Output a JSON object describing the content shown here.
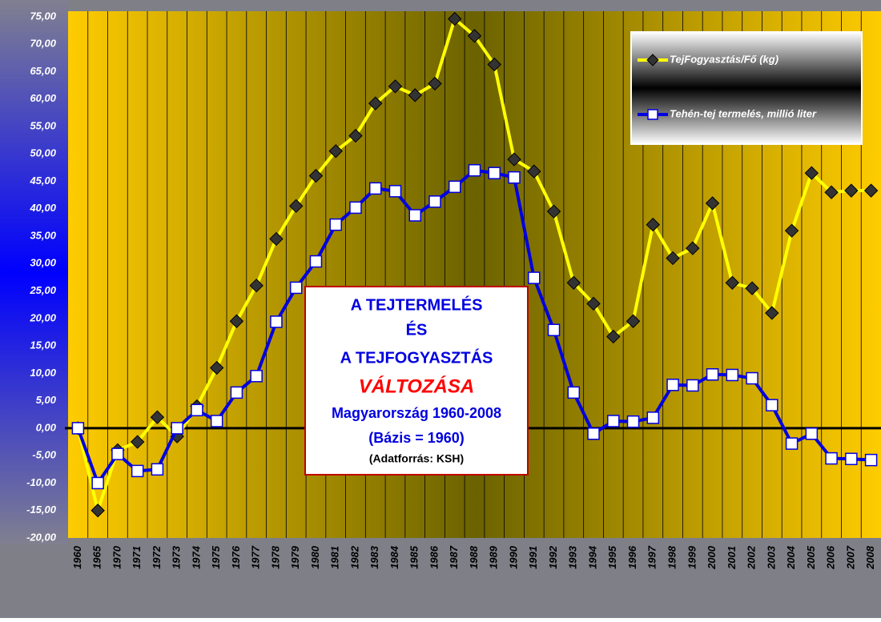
{
  "chart_data": {
    "type": "line",
    "categories": [
      "1960",
      "1965",
      "1970",
      "1971",
      "1972",
      "1973",
      "1974",
      "1975",
      "1976",
      "1977",
      "1978",
      "1979",
      "1980",
      "1981",
      "1982",
      "1983",
      "1984",
      "1985",
      "1986",
      "1987",
      "1988",
      "1989",
      "1990",
      "1991",
      "1992",
      "1993",
      "1994",
      "1995",
      "1996",
      "1997",
      "1998",
      "1999",
      "2000",
      "2001",
      "2002",
      "2003",
      "2004",
      "2005",
      "2006",
      "2007",
      "2008"
    ],
    "series": [
      {
        "name": "TejFogyasztás/Fő (kg)",
        "color": "#ffff00",
        "marker": "diamond",
        "values": [
          0,
          -15,
          -4,
          -2.5,
          2,
          -1.5,
          4,
          11,
          19.5,
          26,
          34.5,
          40.5,
          46,
          50.5,
          53.3,
          59.2,
          62.3,
          60.7,
          62.8,
          74.6,
          71.5,
          66.3,
          49,
          46.8,
          39.5,
          26.5,
          22.7,
          16.7,
          19.5,
          37.1,
          31,
          32.8,
          41,
          26.5,
          25.5,
          21,
          36,
          46.5,
          43,
          43.3,
          43.3
        ]
      },
      {
        "name": "Tehén-tej termelés, millió liter",
        "color": "#0000e0",
        "marker": "square",
        "values": [
          0,
          -10,
          -4.7,
          -7.8,
          -7.5,
          0,
          3.3,
          1.3,
          6.5,
          9.5,
          19.4,
          25.6,
          30.4,
          37.1,
          40.2,
          43.7,
          43.2,
          38.8,
          41.3,
          44,
          47,
          46.5,
          45.7,
          27.4,
          17.9,
          6.5,
          -1,
          1.3,
          1.2,
          1.9,
          7.9,
          7.8,
          9.8,
          9.7,
          9.1,
          4.2,
          -2.8,
          -1,
          -5.5,
          -5.6,
          -5.8
        ]
      }
    ],
    "ylim": [
      -20,
      76
    ],
    "yticks": [
      {
        "value": -20,
        "label": "-20,00"
      },
      {
        "value": -15,
        "label": "-15,00"
      },
      {
        "value": -10,
        "label": "-10,00"
      },
      {
        "value": -5,
        "label": "-5,00"
      },
      {
        "value": 0,
        "label": "0,00"
      },
      {
        "value": 5,
        "label": "5,00"
      },
      {
        "value": 10,
        "label": "10,00"
      },
      {
        "value": 15,
        "label": "15,00"
      },
      {
        "value": 20,
        "label": "20,00"
      },
      {
        "value": 25,
        "label": "25,00"
      },
      {
        "value": 30,
        "label": "30,00"
      },
      {
        "value": 35,
        "label": "35,00"
      },
      {
        "value": 40,
        "label": "40,00"
      },
      {
        "value": 45,
        "label": "45,00"
      },
      {
        "value": 50,
        "label": "50,00"
      },
      {
        "value": 55,
        "label": "55,00"
      },
      {
        "value": 60,
        "label": "60,00"
      },
      {
        "value": 65,
        "label": "65,00"
      },
      {
        "value": 70,
        "label": "70,00"
      },
      {
        "value": 75,
        "label": "75,00"
      }
    ],
    "grid": true,
    "legend": "top-right",
    "annotations": [
      "A TEJTERMELÉS",
      "ÉS",
      "A TEJFOGYASZTÁS",
      "VÁLTOZÁSA",
      "Magyarország 1960-2008",
      "(Bázis = 1960)",
      "(Adatforrás: KSH)"
    ]
  }
}
